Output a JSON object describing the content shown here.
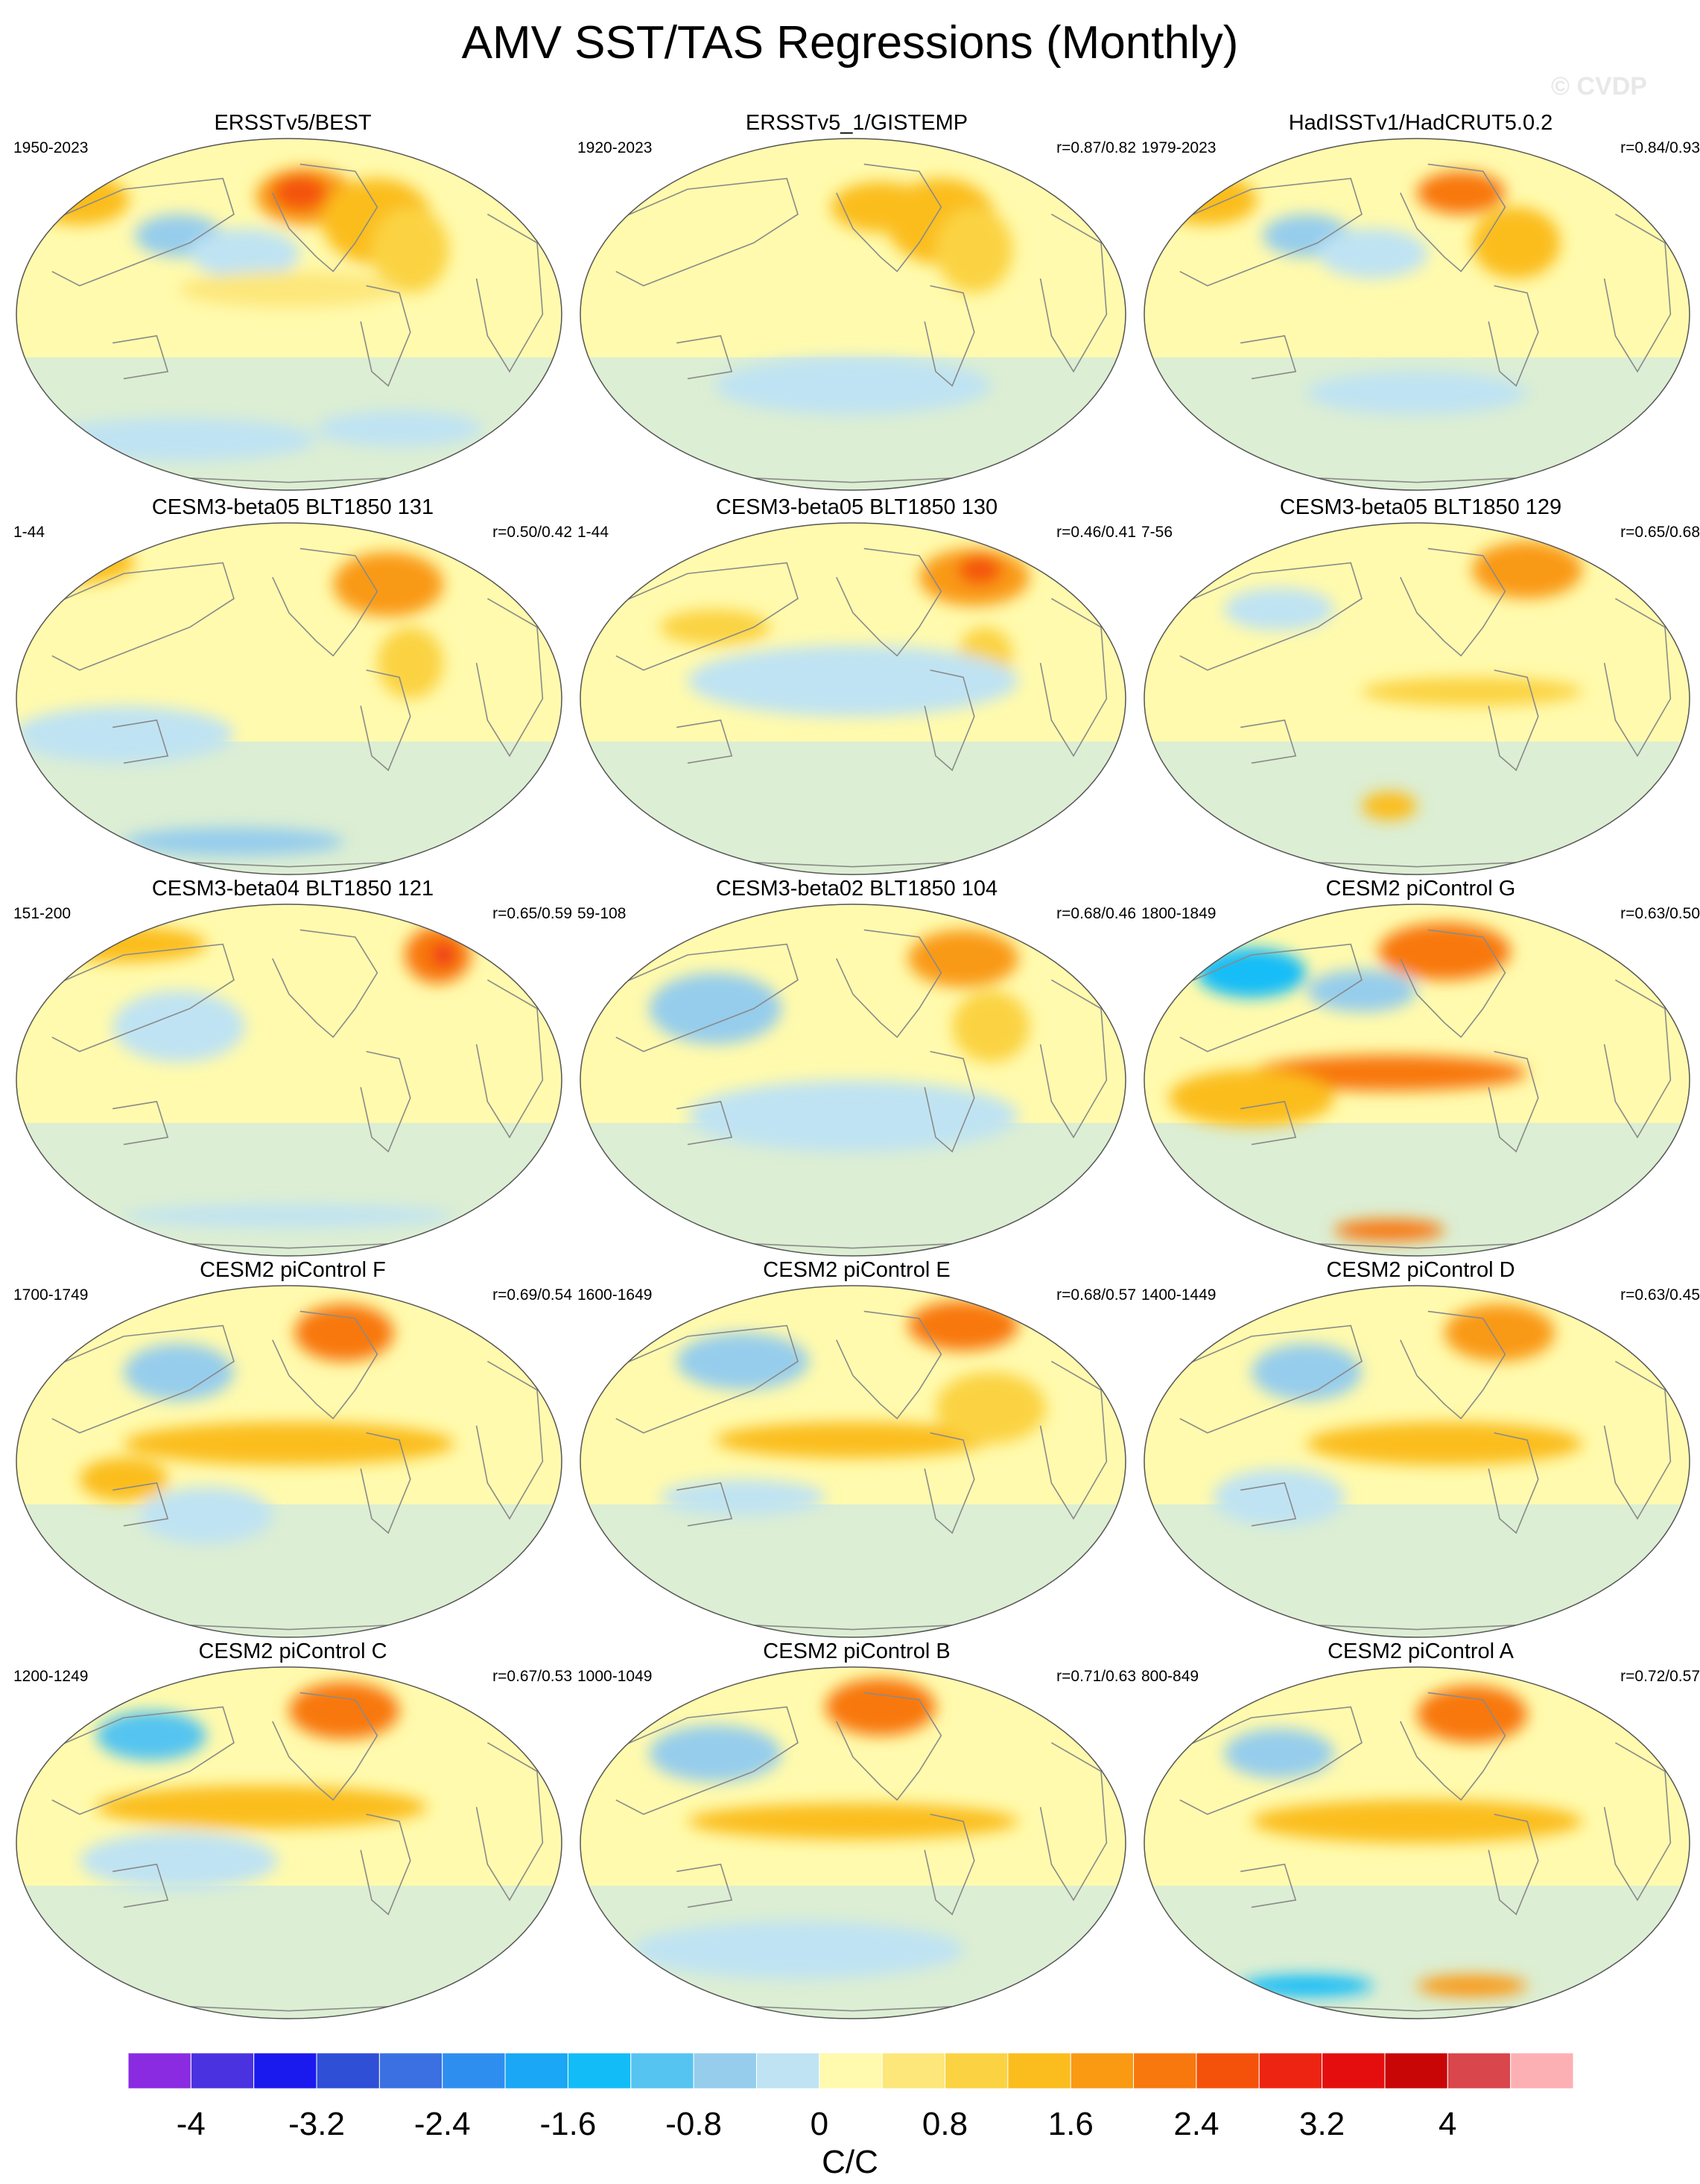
{
  "title": "AMV SST/TAS Regressions (Monthly)",
  "watermark": "© CVDP",
  "panels": [
    {
      "title": "ERSSTv5/BEST",
      "years": "1950-2023",
      "corr": "",
      "pattern": 0
    },
    {
      "title": "ERSSTv5_1/GISTEMP",
      "years": "1920-2023",
      "corr": "r=0.87/0.82",
      "pattern": 1
    },
    {
      "title": "HadISSTv1/HadCRUT5.0.2",
      "years": "1979-2023",
      "corr": "r=0.84/0.93",
      "pattern": 2
    },
    {
      "title": "CESM3-beta05 BLT1850 131",
      "years": "1-44",
      "corr": "r=0.50/0.42",
      "pattern": 3
    },
    {
      "title": "CESM3-beta05 BLT1850 130",
      "years": "1-44",
      "corr": "r=0.46/0.41",
      "pattern": 4
    },
    {
      "title": "CESM3-beta05 BLT1850 129",
      "years": "7-56",
      "corr": "r=0.65/0.68",
      "pattern": 5
    },
    {
      "title": "CESM3-beta04 BLT1850 121",
      "years": "151-200",
      "corr": "r=0.65/0.59",
      "pattern": 6
    },
    {
      "title": "CESM3-beta02 BLT1850 104",
      "years": "59-108",
      "corr": "r=0.68/0.46",
      "pattern": 7
    },
    {
      "title": "CESM2 piControl G",
      "years": "1800-1849",
      "corr": "r=0.63/0.50",
      "pattern": 8
    },
    {
      "title": "CESM2 piControl F",
      "years": "1700-1749",
      "corr": "r=0.69/0.54",
      "pattern": 9
    },
    {
      "title": "CESM2 piControl E",
      "years": "1600-1649",
      "corr": "r=0.68/0.57",
      "pattern": 10
    },
    {
      "title": "CESM2 piControl D",
      "years": "1400-1449",
      "corr": "r=0.63/0.45",
      "pattern": 11
    },
    {
      "title": "CESM2 piControl C",
      "years": "1200-1249",
      "corr": "r=0.67/0.53",
      "pattern": 12
    },
    {
      "title": "CESM2 piControl B",
      "years": "1000-1049",
      "corr": "r=0.71/0.63",
      "pattern": 13
    },
    {
      "title": "CESM2 piControl A",
      "years": "800-849",
      "corr": "r=0.72/0.57",
      "pattern": 14
    }
  ],
  "colorbar": {
    "colors": [
      "#8a2be2",
      "#4b32e0",
      "#1a1aef",
      "#2f4fd6",
      "#3a70e2",
      "#2e8ef0",
      "#1aa7f5",
      "#12bdf7",
      "#55c4f0",
      "#96cdec",
      "#bfe3f3",
      "#fffaad",
      "#fde77a",
      "#fbd342",
      "#fbbd1e",
      "#f99a12",
      "#f8780e",
      "#f4520a",
      "#ee2412",
      "#e40e0e",
      "#c80606",
      "#d9464c",
      "#fdb0b4"
    ],
    "tick_labels": [
      "-4",
      "-3.2",
      "-2.4",
      "-1.6",
      "-0.8",
      "0",
      "0.8",
      "1.6",
      "2.4",
      "3.2",
      "4"
    ],
    "label": "C/C"
  }
}
